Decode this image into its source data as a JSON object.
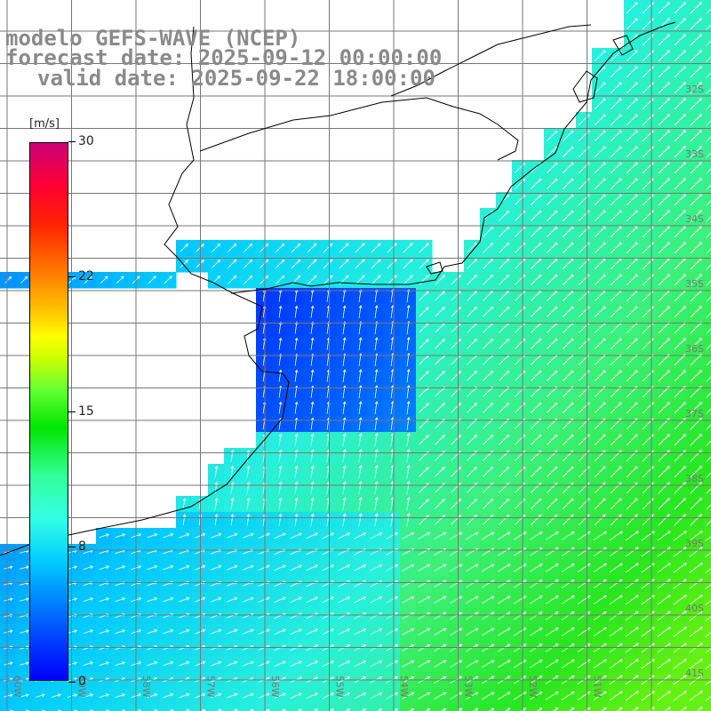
{
  "header": {
    "line1": "modelo GEFS-WAVE (NCEP)",
    "line2": "forecast date: 2025-09-12 00:00:00",
    "line3": "valid date: 2025-09-22 18:00:00"
  },
  "colorbar": {
    "unit": "[m/s]",
    "ticks": [
      "30",
      "22",
      "15",
      "8",
      "0"
    ],
    "colors": [
      "#0000ff",
      "#00ccff",
      "#33ffe6",
      "#00e600",
      "#ffff00",
      "#ff6600",
      "#ff0033",
      "#cc0077"
    ]
  },
  "lat_labels": [
    "32S",
    "33S",
    "34S",
    "35S",
    "36S",
    "37S",
    "38S",
    "39S",
    "40S",
    "41S"
  ],
  "lon_labels": [
    "60W",
    "59W",
    "58W",
    "57W",
    "56W",
    "55W",
    "54W",
    "53W",
    "52W",
    "51W"
  ]
}
